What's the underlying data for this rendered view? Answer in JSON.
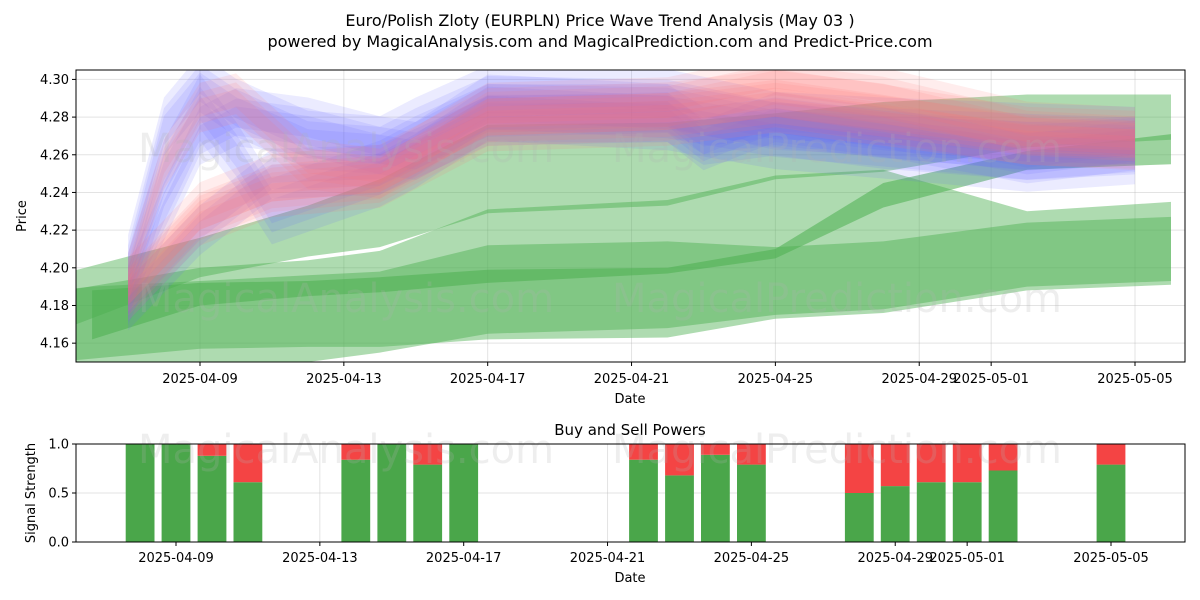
{
  "title": "Euro/Polish Zloty (EURPLN) Price Wave Trend Analysis (May 03 )",
  "subtitle": "powered by MagicalAnalysis.com and MagicalPrediction.com and Predict-Price.com",
  "watermarks": [
    "MagicalAnalysis.com",
    "MagicalPrediction.com"
  ],
  "colors": {
    "green_band": "#4caf50",
    "blue_band": "#6666ff",
    "red_band": "#ff7777",
    "buy": "#4aa64a",
    "sell": "#f44444"
  },
  "chart_data": [
    {
      "type": "area",
      "title": "",
      "xlabel": "Date",
      "ylabel": "Price",
      "xlim": [
        "2025-04-05",
        "2025-05-06"
      ],
      "ylim": [
        4.15,
        4.305
      ],
      "xticks": [
        "2025-04-09",
        "2025-04-13",
        "2025-04-17",
        "2025-04-21",
        "2025-04-25",
        "2025-04-29",
        "2025-05-01",
        "2025-05-05"
      ],
      "yticks": [
        "4.16",
        "4.18",
        "4.20",
        "4.22",
        "4.24",
        "4.26",
        "4.28",
        "4.30"
      ],
      "grid": true,
      "green_bands": [
        {
          "x": [
            "2025-04-05",
            "2025-04-09",
            "2025-04-12",
            "2025-04-14",
            "2025-04-17",
            "2025-04-22",
            "2025-04-25",
            "2025-04-28",
            "2025-05-02",
            "2025-05-06"
          ],
          "lower": [
            4.166,
            4.195,
            4.206,
            4.211,
            4.229,
            4.233,
            4.247,
            4.251,
            4.264,
            4.268
          ],
          "upper": [
            4.196,
            4.216,
            4.233,
            4.247,
            4.276,
            4.277,
            4.282,
            4.288,
            4.292,
            4.292
          ]
        },
        {
          "x": [
            "2025-04-05",
            "2025-04-09",
            "2025-04-12",
            "2025-04-14",
            "2025-04-17",
            "2025-04-22",
            "2025-04-25",
            "2025-04-28",
            "2025-05-02",
            "2025-05-06"
          ],
          "lower": [
            4.15,
            4.157,
            4.158,
            4.158,
            4.162,
            4.163,
            4.173,
            4.176,
            4.188,
            4.191
          ],
          "upper": [
            4.187,
            4.2,
            4.204,
            4.209,
            4.231,
            4.236,
            4.249,
            4.252,
            4.23,
            4.235
          ]
        },
        {
          "x": [
            "2025-04-05",
            "2025-04-06",
            "2025-04-09",
            "2025-04-12",
            "2025-04-14",
            "2025-04-17",
            "2025-04-22",
            "2025-04-25",
            "2025-04-28",
            "2025-05-02",
            "2025-05-06"
          ],
          "lower": [
            4.132,
            4.135,
            4.145,
            4.15,
            4.155,
            4.165,
            4.168,
            4.175,
            4.178,
            4.19,
            4.193
          ],
          "upper": [
            4.188,
            4.19,
            4.193,
            4.196,
            4.198,
            4.212,
            4.214,
            4.211,
            4.214,
            4.224,
            4.227
          ]
        },
        {
          "x": [
            "2025-04-06",
            "2025-04-09",
            "2025-04-12",
            "2025-04-14",
            "2025-04-17",
            "2025-04-22",
            "2025-04-25",
            "2025-04-28",
            "2025-05-02",
            "2025-05-06"
          ],
          "lower": [
            4.162,
            4.18,
            4.185,
            4.187,
            4.192,
            4.197,
            4.205,
            4.232,
            4.252,
            4.255
          ],
          "upper": [
            4.188,
            4.192,
            4.193,
            4.195,
            4.199,
            4.2,
            4.21,
            4.245,
            4.262,
            4.271
          ]
        }
      ],
      "blue_bands": [
        {
          "x": [
            "2025-04-07",
            "2025-04-08",
            "2025-04-09",
            "2025-04-10",
            "2025-04-12",
            "2025-04-14",
            "2025-04-15",
            "2025-04-17",
            "2025-04-22",
            "2025-04-25",
            "2025-04-28",
            "2025-05-02",
            "2025-05-05"
          ],
          "center": [
            4.202,
            4.275,
            4.298,
            4.285,
            4.268,
            4.265,
            4.275,
            4.292,
            4.29,
            4.278,
            4.275,
            4.272,
            4.27
          ],
          "half": 0.007
        },
        {
          "x": [
            "2025-04-07",
            "2025-04-08",
            "2025-04-09",
            "2025-04-10",
            "2025-04-11",
            "2025-04-14",
            "2025-04-15",
            "2025-04-17",
            "2025-04-22",
            "2025-04-25",
            "2025-04-28",
            "2025-05-02",
            "2025-05-05"
          ],
          "center": [
            4.19,
            4.25,
            4.285,
            4.26,
            4.23,
            4.25,
            4.26,
            4.285,
            4.28,
            4.27,
            4.265,
            4.258,
            4.262
          ],
          "half": 0.008
        },
        {
          "x": [
            "2025-04-07",
            "2025-04-08",
            "2025-04-09",
            "2025-04-10",
            "2025-04-12",
            "2025-04-14",
            "2025-04-15",
            "2025-04-17",
            "2025-04-22",
            "2025-04-23",
            "2025-04-25",
            "2025-04-28",
            "2025-05-02",
            "2025-05-05"
          ],
          "center": [
            4.185,
            4.23,
            4.27,
            4.28,
            4.275,
            4.265,
            4.262,
            4.282,
            4.282,
            4.27,
            4.275,
            4.268,
            4.262,
            4.265
          ],
          "half": 0.007
        },
        {
          "x": [
            "2025-04-07",
            "2025-04-09",
            "2025-04-11",
            "2025-04-14",
            "2025-04-17",
            "2025-04-22",
            "2025-04-23",
            "2025-04-25",
            "2025-04-28",
            "2025-05-02",
            "2025-05-05"
          ],
          "center": [
            4.18,
            4.22,
            4.25,
            4.252,
            4.278,
            4.28,
            4.265,
            4.28,
            4.272,
            4.258,
            4.265
          ],
          "half": 0.006
        }
      ],
      "red_bands": [
        {
          "x": [
            "2025-04-07",
            "2025-04-08",
            "2025-04-09",
            "2025-04-10",
            "2025-04-12",
            "2025-04-14",
            "2025-04-17",
            "2025-04-22",
            "2025-04-25",
            "2025-04-28",
            "2025-05-02",
            "2025-05-05"
          ],
          "center": [
            4.195,
            4.255,
            4.285,
            4.29,
            4.255,
            4.25,
            4.285,
            4.288,
            4.3,
            4.293,
            4.275,
            4.272
          ],
          "half": 0.006
        },
        {
          "x": [
            "2025-04-07",
            "2025-04-09",
            "2025-04-11",
            "2025-04-14",
            "2025-04-17",
            "2025-04-22",
            "2025-04-25",
            "2025-04-28",
            "2025-05-02",
            "2025-05-05"
          ],
          "center": [
            4.19,
            4.23,
            4.245,
            4.25,
            4.28,
            4.283,
            4.29,
            4.282,
            4.27,
            4.268
          ],
          "half": 0.007
        },
        {
          "x": [
            "2025-04-07",
            "2025-04-09",
            "2025-04-11",
            "2025-04-14",
            "2025-04-17",
            "2025-04-22",
            "2025-04-25",
            "2025-04-28",
            "2025-05-02",
            "2025-05-05"
          ],
          "center": [
            4.185,
            4.225,
            4.24,
            4.245,
            4.275,
            4.278,
            4.285,
            4.278,
            4.268,
            4.265
          ],
          "half": 0.006
        }
      ]
    },
    {
      "type": "bar",
      "title": "Buy and Sell Powers",
      "xlabel": "Date",
      "ylabel": "Signal Strength",
      "xlim": [
        "2025-04-05",
        "2025-05-06"
      ],
      "ylim": [
        0,
        1
      ],
      "xticks": [
        "2025-04-09",
        "2025-04-13",
        "2025-04-17",
        "2025-04-21",
        "2025-04-25",
        "2025-04-29",
        "2025-05-01",
        "2025-05-05"
      ],
      "yticks": [
        "0.0",
        "0.5",
        "1.0"
      ],
      "grid": true,
      "series": [
        {
          "name": "Buy",
          "dates": [
            "2025-04-08",
            "2025-04-09",
            "2025-04-10",
            "2025-04-11",
            "2025-04-14",
            "2025-04-15",
            "2025-04-16",
            "2025-04-17",
            "2025-04-22",
            "2025-04-23",
            "2025-04-24",
            "2025-04-25",
            "2025-04-28",
            "2025-04-29",
            "2025-04-30",
            "2025-05-01",
            "2025-05-02",
            "2025-05-05"
          ],
          "values": [
            1.0,
            1.0,
            0.88,
            0.61,
            0.84,
            1.0,
            0.79,
            1.0,
            0.84,
            0.68,
            0.89,
            0.79,
            0.5,
            0.57,
            0.61,
            0.61,
            0.73,
            0.79
          ]
        },
        {
          "name": "Sell",
          "dates": [
            "2025-04-08",
            "2025-04-09",
            "2025-04-10",
            "2025-04-11",
            "2025-04-14",
            "2025-04-15",
            "2025-04-16",
            "2025-04-17",
            "2025-04-22",
            "2025-04-23",
            "2025-04-24",
            "2025-04-25",
            "2025-04-28",
            "2025-04-29",
            "2025-04-30",
            "2025-05-01",
            "2025-05-02",
            "2025-05-05"
          ],
          "values": [
            0.0,
            0.0,
            0.12,
            0.39,
            0.16,
            0.0,
            0.21,
            0.0,
            0.16,
            0.32,
            0.11,
            0.21,
            0.5,
            0.43,
            0.39,
            0.39,
            0.27,
            0.21
          ]
        }
      ]
    }
  ]
}
